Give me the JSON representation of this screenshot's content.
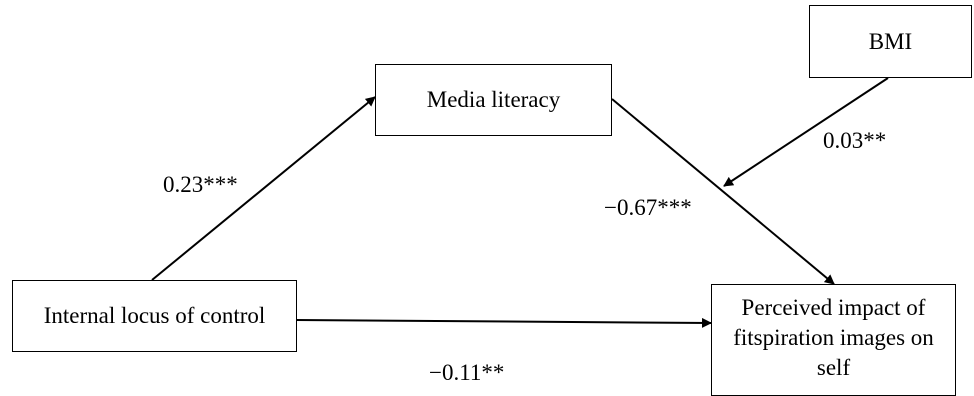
{
  "nodes": {
    "bmi": "BMI",
    "media_literacy": "Media literacy",
    "internal_locus": "Internal locus of control",
    "perceived_impact": "Perceived impact of fitspiration images on self"
  },
  "paths": {
    "locus_to_media": "0.23***",
    "media_to_impact": "−0.67***",
    "bmi_moderation": "0.03**",
    "locus_to_impact": "−0.11**"
  },
  "colors": {
    "line": "#000000",
    "background": "#ffffff"
  }
}
